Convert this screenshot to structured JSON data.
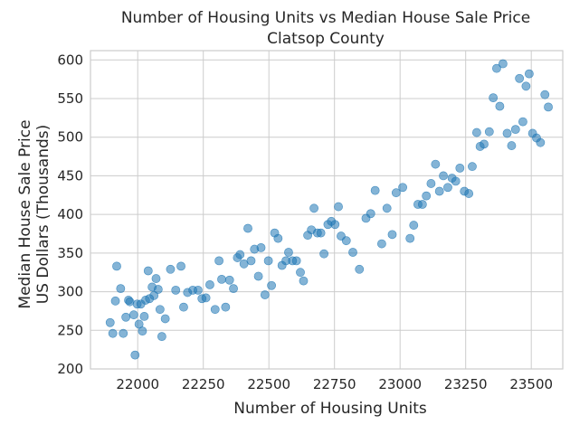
{
  "chart_data": {
    "type": "scatter",
    "title": "Number of Housing Units vs Median House Sale Price",
    "subtitle": "Clatsop County",
    "xlabel": "Number of Housing Units",
    "ylabel": "Median House Sale Price",
    "ylabel2": "US Dollars (Thousands)",
    "xlim": [
      21820,
      23620
    ],
    "ylim": [
      200,
      612
    ],
    "xticks": [
      22000,
      22250,
      22500,
      22750,
      23000,
      23250,
      23500
    ],
    "yticks": [
      200,
      250,
      300,
      350,
      400,
      450,
      500,
      550,
      600
    ],
    "grid": true,
    "marker_color": "#1f77b4",
    "marker_alpha": 0.55,
    "points": [
      [
        21895,
        260
      ],
      [
        21905,
        246
      ],
      [
        21915,
        288
      ],
      [
        21920,
        333
      ],
      [
        21935,
        304
      ],
      [
        21945,
        246
      ],
      [
        21955,
        267
      ],
      [
        21965,
        289
      ],
      [
        21970,
        287
      ],
      [
        21985,
        270
      ],
      [
        21990,
        218
      ],
      [
        21998,
        284
      ],
      [
        22005,
        258
      ],
      [
        22012,
        284
      ],
      [
        22018,
        249
      ],
      [
        22025,
        268
      ],
      [
        22030,
        289
      ],
      [
        22040,
        327
      ],
      [
        22045,
        291
      ],
      [
        22055,
        306
      ],
      [
        22062,
        295
      ],
      [
        22070,
        317
      ],
      [
        22078,
        303
      ],
      [
        22085,
        277
      ],
      [
        22092,
        242
      ],
      [
        22105,
        265
      ],
      [
        22125,
        329
      ],
      [
        22145,
        302
      ],
      [
        22165,
        333
      ],
      [
        22175,
        280
      ],
      [
        22190,
        299
      ],
      [
        22210,
        302
      ],
      [
        22230,
        302
      ],
      [
        22245,
        291
      ],
      [
        22260,
        292
      ],
      [
        22275,
        309
      ],
      [
        22295,
        277
      ],
      [
        22310,
        340
      ],
      [
        22320,
        316
      ],
      [
        22335,
        280
      ],
      [
        22350,
        315
      ],
      [
        22365,
        304
      ],
      [
        22380,
        344
      ],
      [
        22390,
        348
      ],
      [
        22405,
        336
      ],
      [
        22420,
        382
      ],
      [
        22432,
        340
      ],
      [
        22445,
        355
      ],
      [
        22460,
        320
      ],
      [
        22470,
        357
      ],
      [
        22485,
        296
      ],
      [
        22498,
        340
      ],
      [
        22510,
        308
      ],
      [
        22522,
        376
      ],
      [
        22535,
        369
      ],
      [
        22550,
        334
      ],
      [
        22565,
        340
      ],
      [
        22575,
        351
      ],
      [
        22590,
        340
      ],
      [
        22605,
        340
      ],
      [
        22620,
        325
      ],
      [
        22632,
        314
      ],
      [
        22648,
        373
      ],
      [
        22662,
        380
      ],
      [
        22672,
        408
      ],
      [
        22685,
        376
      ],
      [
        22698,
        376
      ],
      [
        22710,
        349
      ],
      [
        22725,
        387
      ],
      [
        22738,
        391
      ],
      [
        22752,
        387
      ],
      [
        22765,
        410
      ],
      [
        22775,
        372
      ],
      [
        22795,
        366
      ],
      [
        22820,
        351
      ],
      [
        22845,
        329
      ],
      [
        22870,
        395
      ],
      [
        22888,
        401
      ],
      [
        22905,
        431
      ],
      [
        22930,
        362
      ],
      [
        22950,
        408
      ],
      [
        22970,
        374
      ],
      [
        22985,
        428
      ],
      [
        23010,
        435
      ],
      [
        23038,
        369
      ],
      [
        23052,
        386
      ],
      [
        23068,
        413
      ],
      [
        23085,
        413
      ],
      [
        23100,
        424
      ],
      [
        23118,
        440
      ],
      [
        23135,
        465
      ],
      [
        23150,
        430
      ],
      [
        23165,
        450
      ],
      [
        23182,
        435
      ],
      [
        23198,
        447
      ],
      [
        23212,
        443
      ],
      [
        23228,
        460
      ],
      [
        23245,
        430
      ],
      [
        23262,
        427
      ],
      [
        23275,
        462
      ],
      [
        23292,
        506
      ],
      [
        23305,
        488
      ],
      [
        23320,
        491
      ],
      [
        23340,
        507
      ],
      [
        23355,
        551
      ],
      [
        23368,
        589
      ],
      [
        23380,
        540
      ],
      [
        23392,
        595
      ],
      [
        23408,
        505
      ],
      [
        23425,
        489
      ],
      [
        23440,
        510
      ],
      [
        23455,
        576
      ],
      [
        23468,
        520
      ],
      [
        23480,
        566
      ],
      [
        23492,
        582
      ],
      [
        23505,
        505
      ],
      [
        23520,
        499
      ],
      [
        23535,
        493
      ],
      [
        23552,
        555
      ],
      [
        23565,
        539
      ]
    ]
  }
}
